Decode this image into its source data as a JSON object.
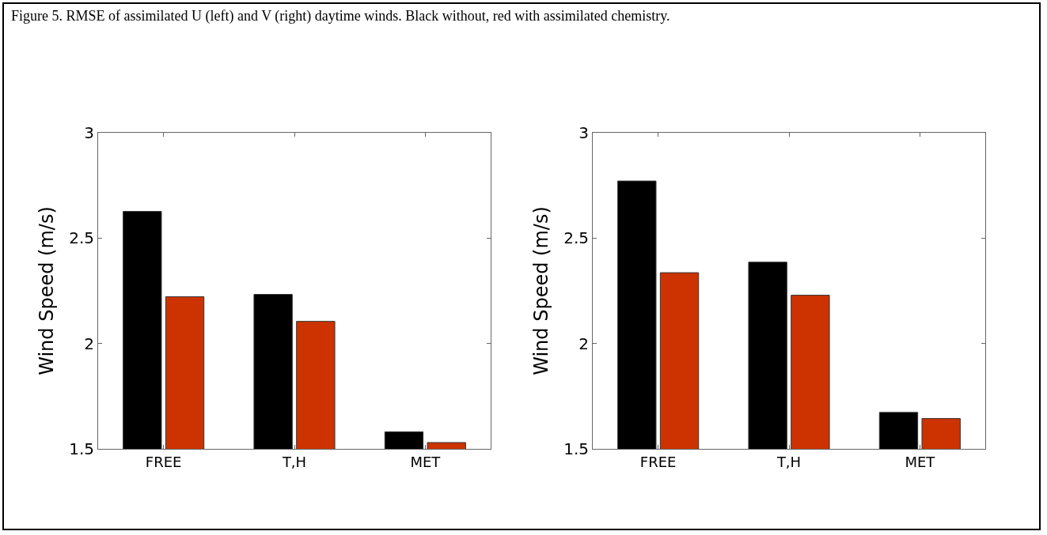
{
  "chart_data": [
    {
      "type": "bar",
      "title": "Figure 5. RMSE of assimilated U (left) and V (right) daytime winds. Black without, red with assimilated chemistry.",
      "ylabel": "Wind Speed (m/s)",
      "categories": [
        "FREE",
        "T,H",
        "MET"
      ],
      "series": [
        {
          "color": "#000000",
          "values": [
            2.627,
            2.233,
            1.581
          ]
        },
        {
          "color": "#cc3300",
          "values": [
            2.222,
            2.105,
            1.53
          ]
        }
      ],
      "ylim": [
        1.5,
        3
      ],
      "yticks": [
        1.5,
        2,
        2.5,
        3
      ]
    },
    {
      "type": "bar",
      "ylabel": "Wind Speed (m/s)",
      "categories": [
        "FREE",
        "T,H",
        "MET"
      ],
      "series": [
        {
          "color": "#000000",
          "values": [
            2.771,
            2.386,
            1.673
          ]
        },
        {
          "color": "#cc3300",
          "values": [
            2.336,
            2.229,
            1.644
          ]
        }
      ],
      "ylim": [
        1.5,
        3
      ],
      "yticks": [
        1.5,
        2,
        2.5,
        3
      ]
    }
  ]
}
